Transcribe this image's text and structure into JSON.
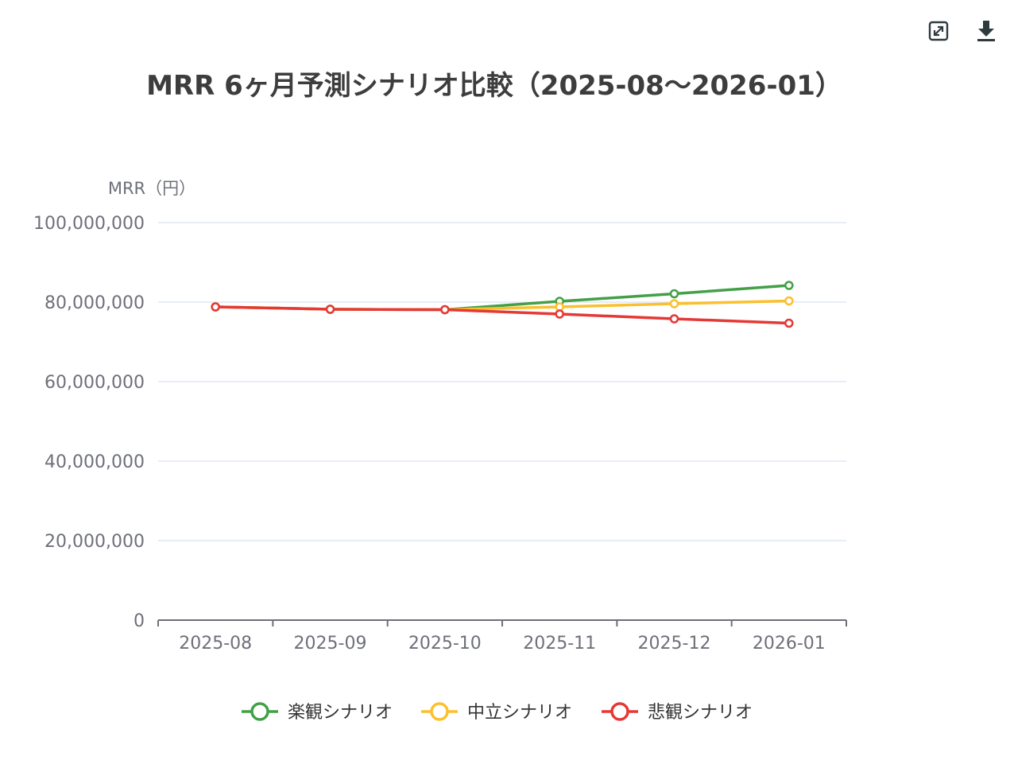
{
  "toolbar": {
    "restore_icon": "restore-icon",
    "download_icon": "download-icon"
  },
  "chart_data": {
    "type": "line",
    "title": "MRR 6ヶ月予測シナリオ比較（2025-08〜2026-01）",
    "ylabel": "MRR（円）",
    "xlabel": "",
    "categories": [
      "2025-08",
      "2025-09",
      "2025-10",
      "2025-11",
      "2025-12",
      "2026-01"
    ],
    "ylim": [
      0,
      100000000
    ],
    "yticks": [
      0,
      20000000,
      40000000,
      60000000,
      80000000,
      100000000
    ],
    "ytick_labels": [
      "0",
      "20,000,000",
      "40,000,000",
      "60,000,000",
      "80,000,000",
      "100,000,000"
    ],
    "grid": true,
    "legend_position": "bottom-center",
    "series": [
      {
        "name": "楽観シナリオ",
        "color": "#43a047",
        "values": [
          78800000,
          78200000,
          78100000,
          80200000,
          82100000,
          84200000
        ]
      },
      {
        "name": "中立シナリオ",
        "color": "#fbc02d",
        "values": [
          78800000,
          78200000,
          78100000,
          78800000,
          79600000,
          80300000
        ]
      },
      {
        "name": "悲観シナリオ",
        "color": "#e53935",
        "values": [
          78800000,
          78200000,
          78100000,
          77000000,
          75800000,
          74700000
        ]
      }
    ]
  }
}
